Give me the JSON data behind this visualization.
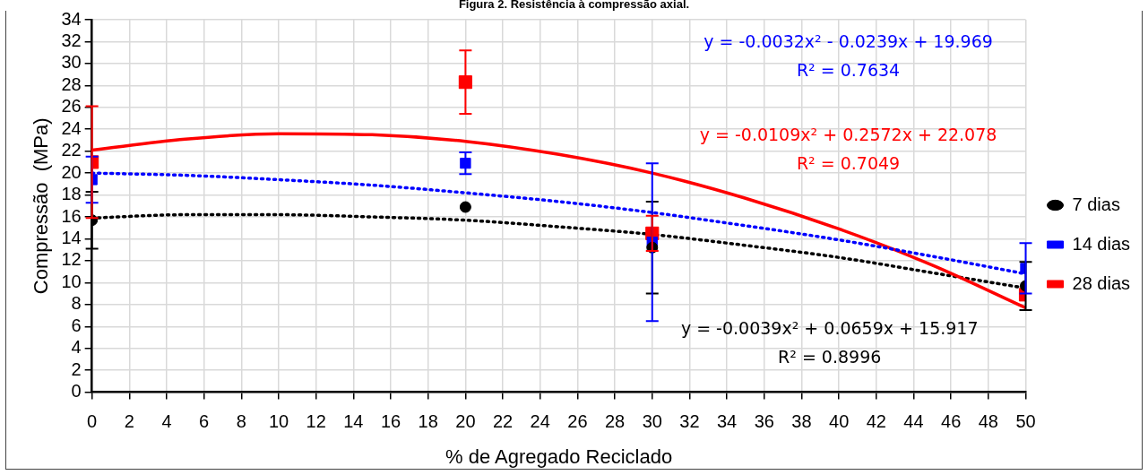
{
  "chart_data": {
    "type": "scatter",
    "title": "Figura 2. Resistência à compressão axial.",
    "xlabel": "% de Agregado Reciclado",
    "ylabel": "Compressão  (MPa)",
    "xlim": [
      0,
      50
    ],
    "xticks": [
      0,
      2,
      4,
      6,
      8,
      10,
      12,
      14,
      16,
      18,
      20,
      22,
      24,
      26,
      28,
      30,
      32,
      34,
      36,
      38,
      40,
      42,
      44,
      46,
      48,
      50
    ],
    "ylim": [
      0,
      34
    ],
    "yticks": [
      0,
      2,
      4,
      6,
      8,
      10,
      12,
      14,
      16,
      18,
      20,
      22,
      24,
      26,
      28,
      30,
      32,
      34
    ],
    "grid": true,
    "legend": "right",
    "x": [
      0,
      20,
      30,
      50
    ],
    "series": [
      {
        "name": "7 dias",
        "color": "#000000",
        "marker": "circle",
        "values": [
          15.7,
          16.9,
          13.2,
          9.7
        ],
        "errors": [
          2.6,
          null,
          4.2,
          2.2
        ]
      },
      {
        "name": "14 dias",
        "color": "#0000ff",
        "marker": "square",
        "values": [
          19.4,
          20.9,
          13.7,
          11.3
        ],
        "errors": [
          2.1,
          1.0,
          7.2,
          2.3
        ]
      },
      {
        "name": "28 dias",
        "color": "#ff0000",
        "marker": "square",
        "values": [
          21.0,
          28.3,
          14.5,
          8.9
        ],
        "errors": [
          5.1,
          2.9,
          1.6,
          null
        ]
      },
      {
        "type": "line",
        "color": "#0000ff",
        "line_style": "dotted",
        "marker": "none",
        "x": [
          0,
          5,
          10,
          15,
          20,
          25,
          30,
          35,
          40,
          45,
          50
        ],
        "values": [
          20.0,
          19.8,
          19.4,
          18.9,
          18.2,
          17.4,
          16.4,
          15.2,
          13.9,
          12.4,
          10.8
        ]
      },
      {
        "type": "line",
        "color": "#ff0000",
        "line_style": "solid",
        "marker": "none",
        "x": [
          0,
          5,
          10,
          15,
          20,
          25,
          30,
          35,
          40,
          45,
          50
        ],
        "values": [
          22.1,
          23.1,
          23.6,
          23.5,
          22.9,
          21.7,
          20.0,
          17.7,
          14.9,
          11.6,
          7.7
        ]
      },
      {
        "type": "line",
        "color": "#000000",
        "line_style": "dotted",
        "marker": "none",
        "x": [
          0,
          5,
          10,
          15,
          20,
          25,
          30,
          35,
          40,
          45,
          50
        ],
        "values": [
          15.9,
          16.2,
          16.2,
          16.0,
          15.7,
          15.1,
          14.4,
          13.4,
          12.3,
          10.9,
          9.5
        ]
      }
    ],
    "annotations": [
      "y = -0.0032x² - 0.0239x + 19.969\nR² = 0.7634",
      "y = -0.0109x² + 0.2572x + 22.078\nR² = 0.7049",
      "y = -0.0039x² + 0.0659x + 15.917\nR² = 0.8996"
    ]
  }
}
